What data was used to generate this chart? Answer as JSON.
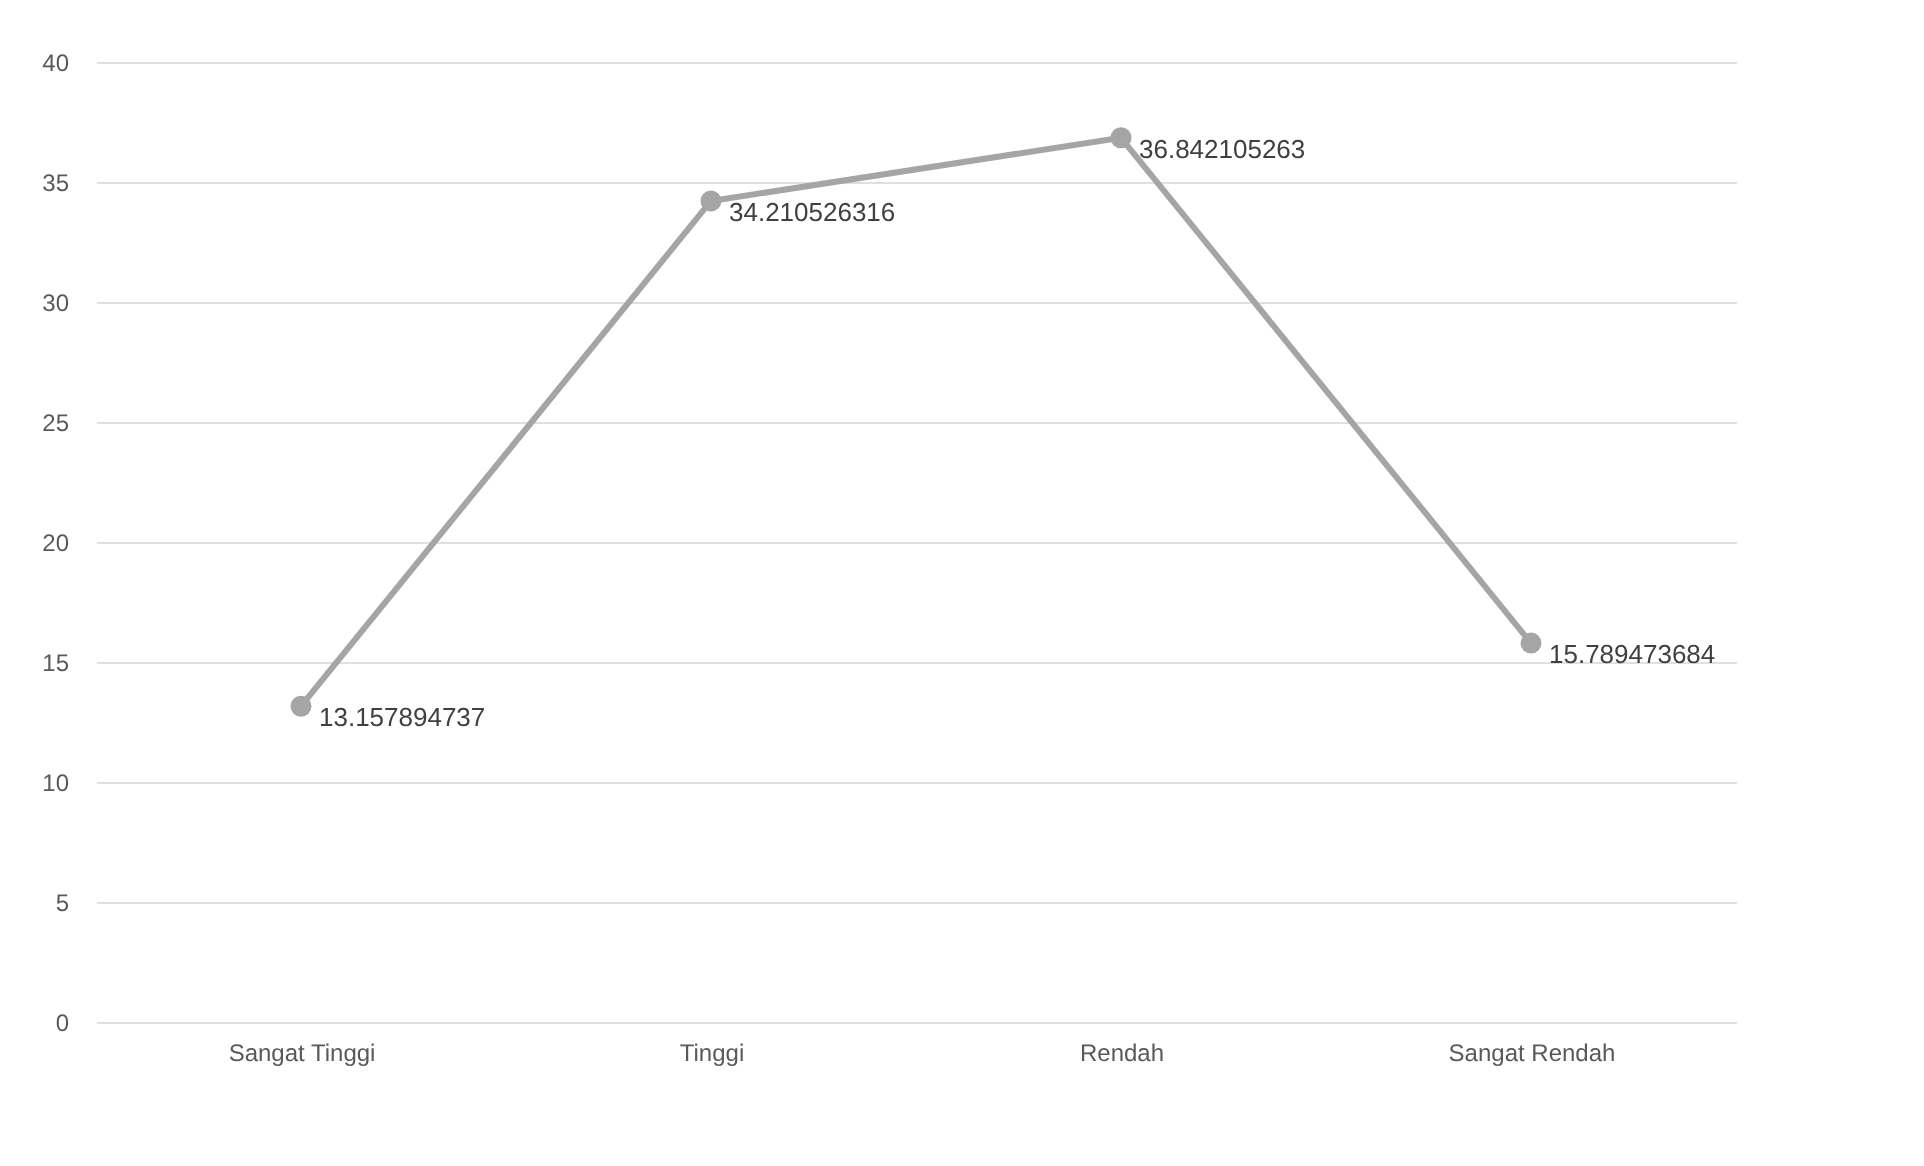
{
  "chart_data": {
    "type": "line",
    "categories": [
      "Sangat Tinggi",
      "Tinggi",
      "Rendah",
      "Sangat Rendah"
    ],
    "values": [
      13.157894737,
      34.210526316,
      36.842105263,
      15.789473684
    ],
    "color": "#a5a5a5",
    "ylim": [
      0,
      40
    ],
    "yticks": [
      0,
      5,
      10,
      15,
      20,
      25,
      30,
      35,
      40
    ],
    "grid": "y",
    "marker": "circle",
    "line_style": "solid",
    "data_labels": true
  }
}
